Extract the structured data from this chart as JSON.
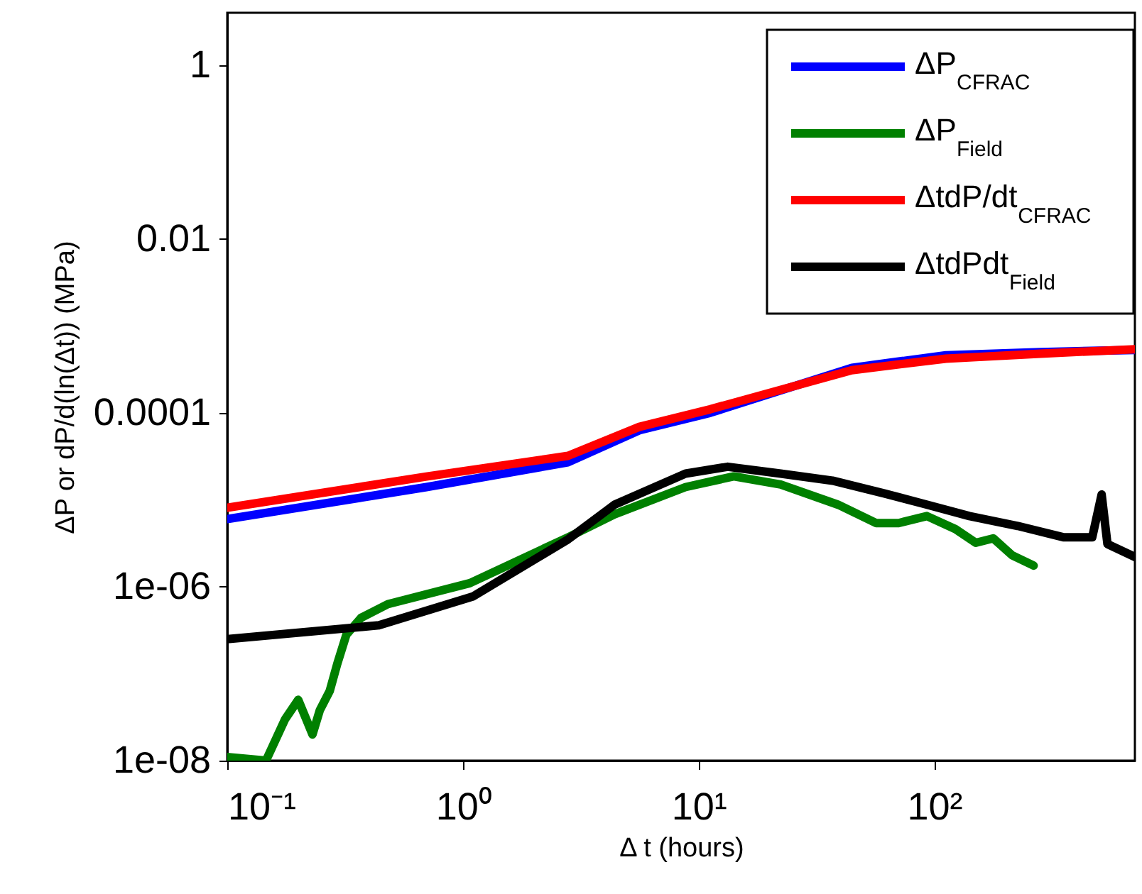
{
  "chart_data": {
    "type": "line",
    "xlabel": "Δ t (hours)",
    "ylabel": "ΔP or dP/d(ln(Δt)) (MPa)",
    "log": "xy",
    "grid": false,
    "legend": "top right",
    "line_style": "solid",
    "marker": "none",
    "xlim": [
      0.1,
      710
    ],
    "ylim": [
      1e-08,
      4
    ],
    "xticks": [
      {
        "value": 0.1,
        "label": "10⁻¹"
      },
      {
        "value": 1,
        "label": "10⁰"
      },
      {
        "value": 10,
        "label": "10¹"
      },
      {
        "value": 100,
        "label": "10²"
      }
    ],
    "yticks": [
      {
        "value": 1e-08,
        "label": "1e-08"
      },
      {
        "value": 1e-06,
        "label": "1e-06"
      },
      0.0001,
      0.01,
      1
    ],
    "series": [
      {
        "name": "ΔP$_{CFRAC}$",
        "color": "#0000ff",
        "x": [
          0.1,
          0.7,
          2.79,
          5.6,
          11.2,
          44.7,
          112,
          282,
          710
        ],
        "values": [
          6e-06,
          1.4e-05,
          2.7e-05,
          6.3e-05,
          0.0001,
          0.00033,
          0.00046,
          0.0005,
          0.00053
        ]
      },
      {
        "name": "ΔP$_{Field}$",
        "color": "#008000",
        "x": [
          0.1,
          0.146,
          0.176,
          0.2,
          0.23,
          0.247,
          0.272,
          0.293,
          0.32,
          0.37,
          0.48,
          1.07,
          2.79,
          4.4,
          8.8,
          14.1,
          22.3,
          39,
          56.6,
          70.6,
          93,
          123,
          150,
          178,
          214,
          264
        ],
        "values": [
          1.1e-08,
          1e-08,
          3e-08,
          5e-08,
          2e-08,
          3.8e-08,
          6.3e-08,
          1.3e-07,
          2.8e-07,
          4.4e-07,
          6.3e-07,
          1.1e-06,
          3.7e-06,
          6.8e-06,
          1.4e-05,
          1.86e-05,
          1.5e-05,
          8.8e-06,
          5.4e-06,
          5.4e-06,
          6.5e-06,
          4.6e-06,
          3.2e-06,
          3.6e-06,
          2.3e-06,
          1.75e-06
        ]
      },
      {
        "name": "ΔtdP/dt$_{CFRAC}$",
        "color": "#ff0000",
        "x": [
          0.1,
          0.7,
          2.79,
          5.6,
          11.2,
          44.7,
          112,
          282,
          710
        ],
        "values": [
          8.1e-06,
          1.85e-05,
          3.2e-05,
          6.9e-05,
          0.00011,
          0.00031,
          0.00042,
          0.00048,
          0.00054
        ]
      },
      {
        "name": "ΔtdPdt$_{Field}$",
        "color": "#000000",
        "x": [
          0.1,
          0.44,
          1.1,
          2.79,
          4.4,
          8.8,
          13.3,
          22.3,
          37,
          61.6,
          93,
          141,
          226,
          355,
          468,
          513,
          543,
          710
        ],
        "values": [
          2.5e-07,
          3.6e-07,
          7.7e-07,
          3.5e-06,
          8.8e-06,
          2e-05,
          2.4e-05,
          2e-05,
          1.66e-05,
          1.18e-05,
          8.8e-06,
          6.5e-06,
          5e-06,
          3.7e-06,
          3.7e-06,
          1.15e-05,
          3.1e-06,
          2.2e-06
        ]
      }
    ]
  }
}
